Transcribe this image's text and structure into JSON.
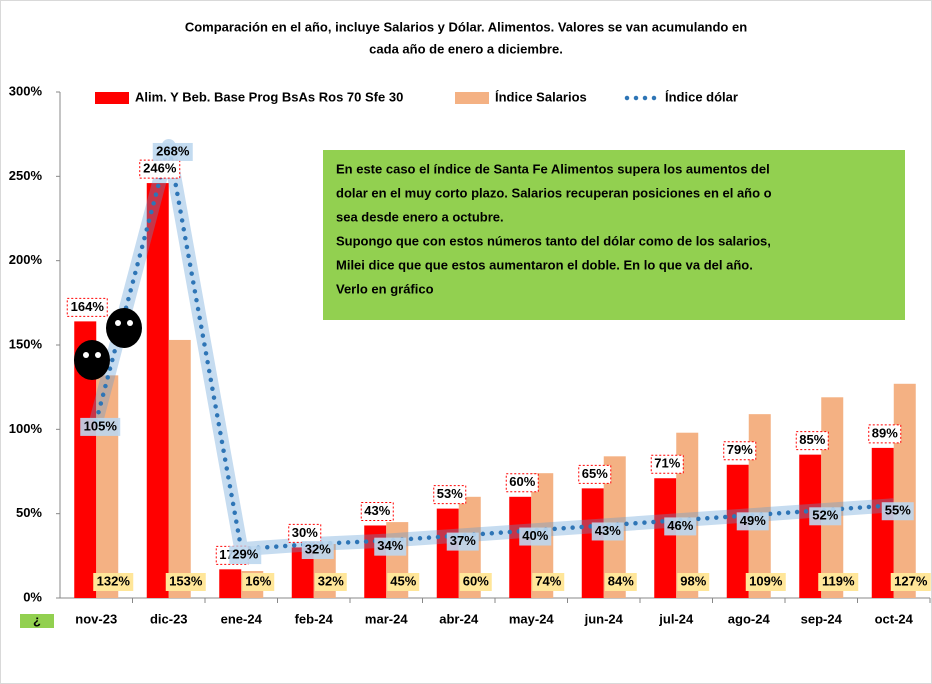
{
  "chart_data": {
    "type": "bar",
    "title": [
      "Comparación en el año, incluye Salarios y Dólar. Alimentos. Valores  se van acumulando en",
      "cada año de enero a diciembre."
    ],
    "categories": [
      "nov-23",
      "dic-23",
      "ene-24",
      "feb-24",
      "mar-24",
      "abr-24",
      "may-24",
      "jun-24",
      "jul-24",
      "ago-24",
      "sep-24",
      "oct-24"
    ],
    "series": [
      {
        "name": "Alim. Y Beb.  Base Prog BsAs Ros 70 Sfe 30",
        "type": "bar",
        "color": "#ff0000",
        "values": [
          164,
          246,
          17,
          30,
          43,
          53,
          60,
          65,
          71,
          79,
          85,
          89
        ],
        "value_labels": [
          "164%",
          "246%",
          "17%",
          "30%",
          "43%",
          "53%",
          "60%",
          "65%",
          "71%",
          "79%",
          "85%",
          "89%"
        ]
      },
      {
        "name": "Índice Salarios",
        "type": "bar",
        "color": "#f4b183",
        "values": [
          132,
          153,
          16,
          32,
          45,
          60,
          74,
          84,
          98,
          109,
          119,
          127
        ],
        "value_labels": [
          "132%",
          "153%",
          "16%",
          "32%",
          "45%",
          "60%",
          "74%",
          "84%",
          "98%",
          "109%",
          "119%",
          "127%"
        ]
      },
      {
        "name": "Índice dólar",
        "type": "line",
        "color": "#2e75b6",
        "values": [
          105,
          268,
          29,
          32,
          34,
          37,
          40,
          43,
          46,
          49,
          52,
          55
        ],
        "value_labels": [
          "105%",
          "268%",
          "29%",
          "32%",
          "34%",
          "37%",
          "40%",
          "43%",
          "46%",
          "49%",
          "52%",
          "55%"
        ]
      }
    ],
    "ylim": [
      0,
      300
    ],
    "yticks": [
      {
        "value": 0,
        "label": "0%"
      },
      {
        "value": 50,
        "label": "50%"
      },
      {
        "value": 100,
        "label": "100%"
      },
      {
        "value": 150,
        "label": "150%"
      },
      {
        "value": 200,
        "label": "200%"
      },
      {
        "value": 250,
        "label": "250%"
      },
      {
        "value": 300,
        "label": "300%"
      }
    ],
    "legend": "top",
    "annotation": [
      "En este caso el índice de Santa Fe Alimentos  supera los aumentos del",
      "dolar en el muy corto plazo. Salarios recuperan posiciones en el año o",
      "sea desde enero a octubre.",
      "Supongo que con estos números tanto del dólar como de los salarios,",
      "Milei dice que que estos aumentaron el doble. En lo que va del año.",
      "Verlo en gráfico"
    ],
    "corner_label": "¿"
  }
}
